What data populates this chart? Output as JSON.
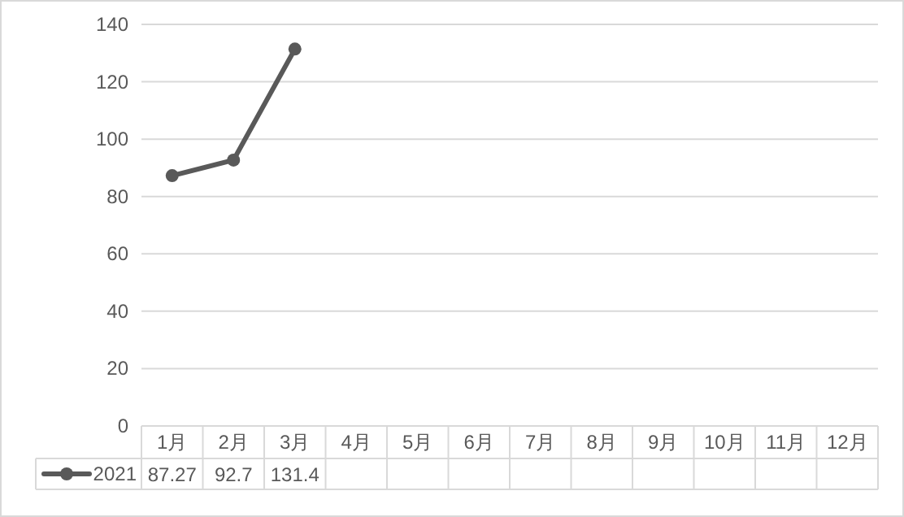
{
  "chart_data": {
    "type": "line",
    "categories": [
      "1月",
      "2月",
      "3月",
      "4月",
      "5月",
      "6月",
      "7月",
      "8月",
      "9月",
      "10月",
      "11月",
      "12月"
    ],
    "series": [
      {
        "name": "2021",
        "color": "#595959",
        "values": [
          87.27,
          92.7,
          131.4,
          null,
          null,
          null,
          null,
          null,
          null,
          null,
          null,
          null
        ]
      }
    ],
    "ylim": [
      0,
      140
    ],
    "yticks": [
      0,
      20,
      40,
      60,
      80,
      100,
      120,
      140
    ],
    "grid": "y",
    "marker": "circle",
    "line_style": "solid",
    "data_labels": true,
    "legend": "bottom left"
  }
}
